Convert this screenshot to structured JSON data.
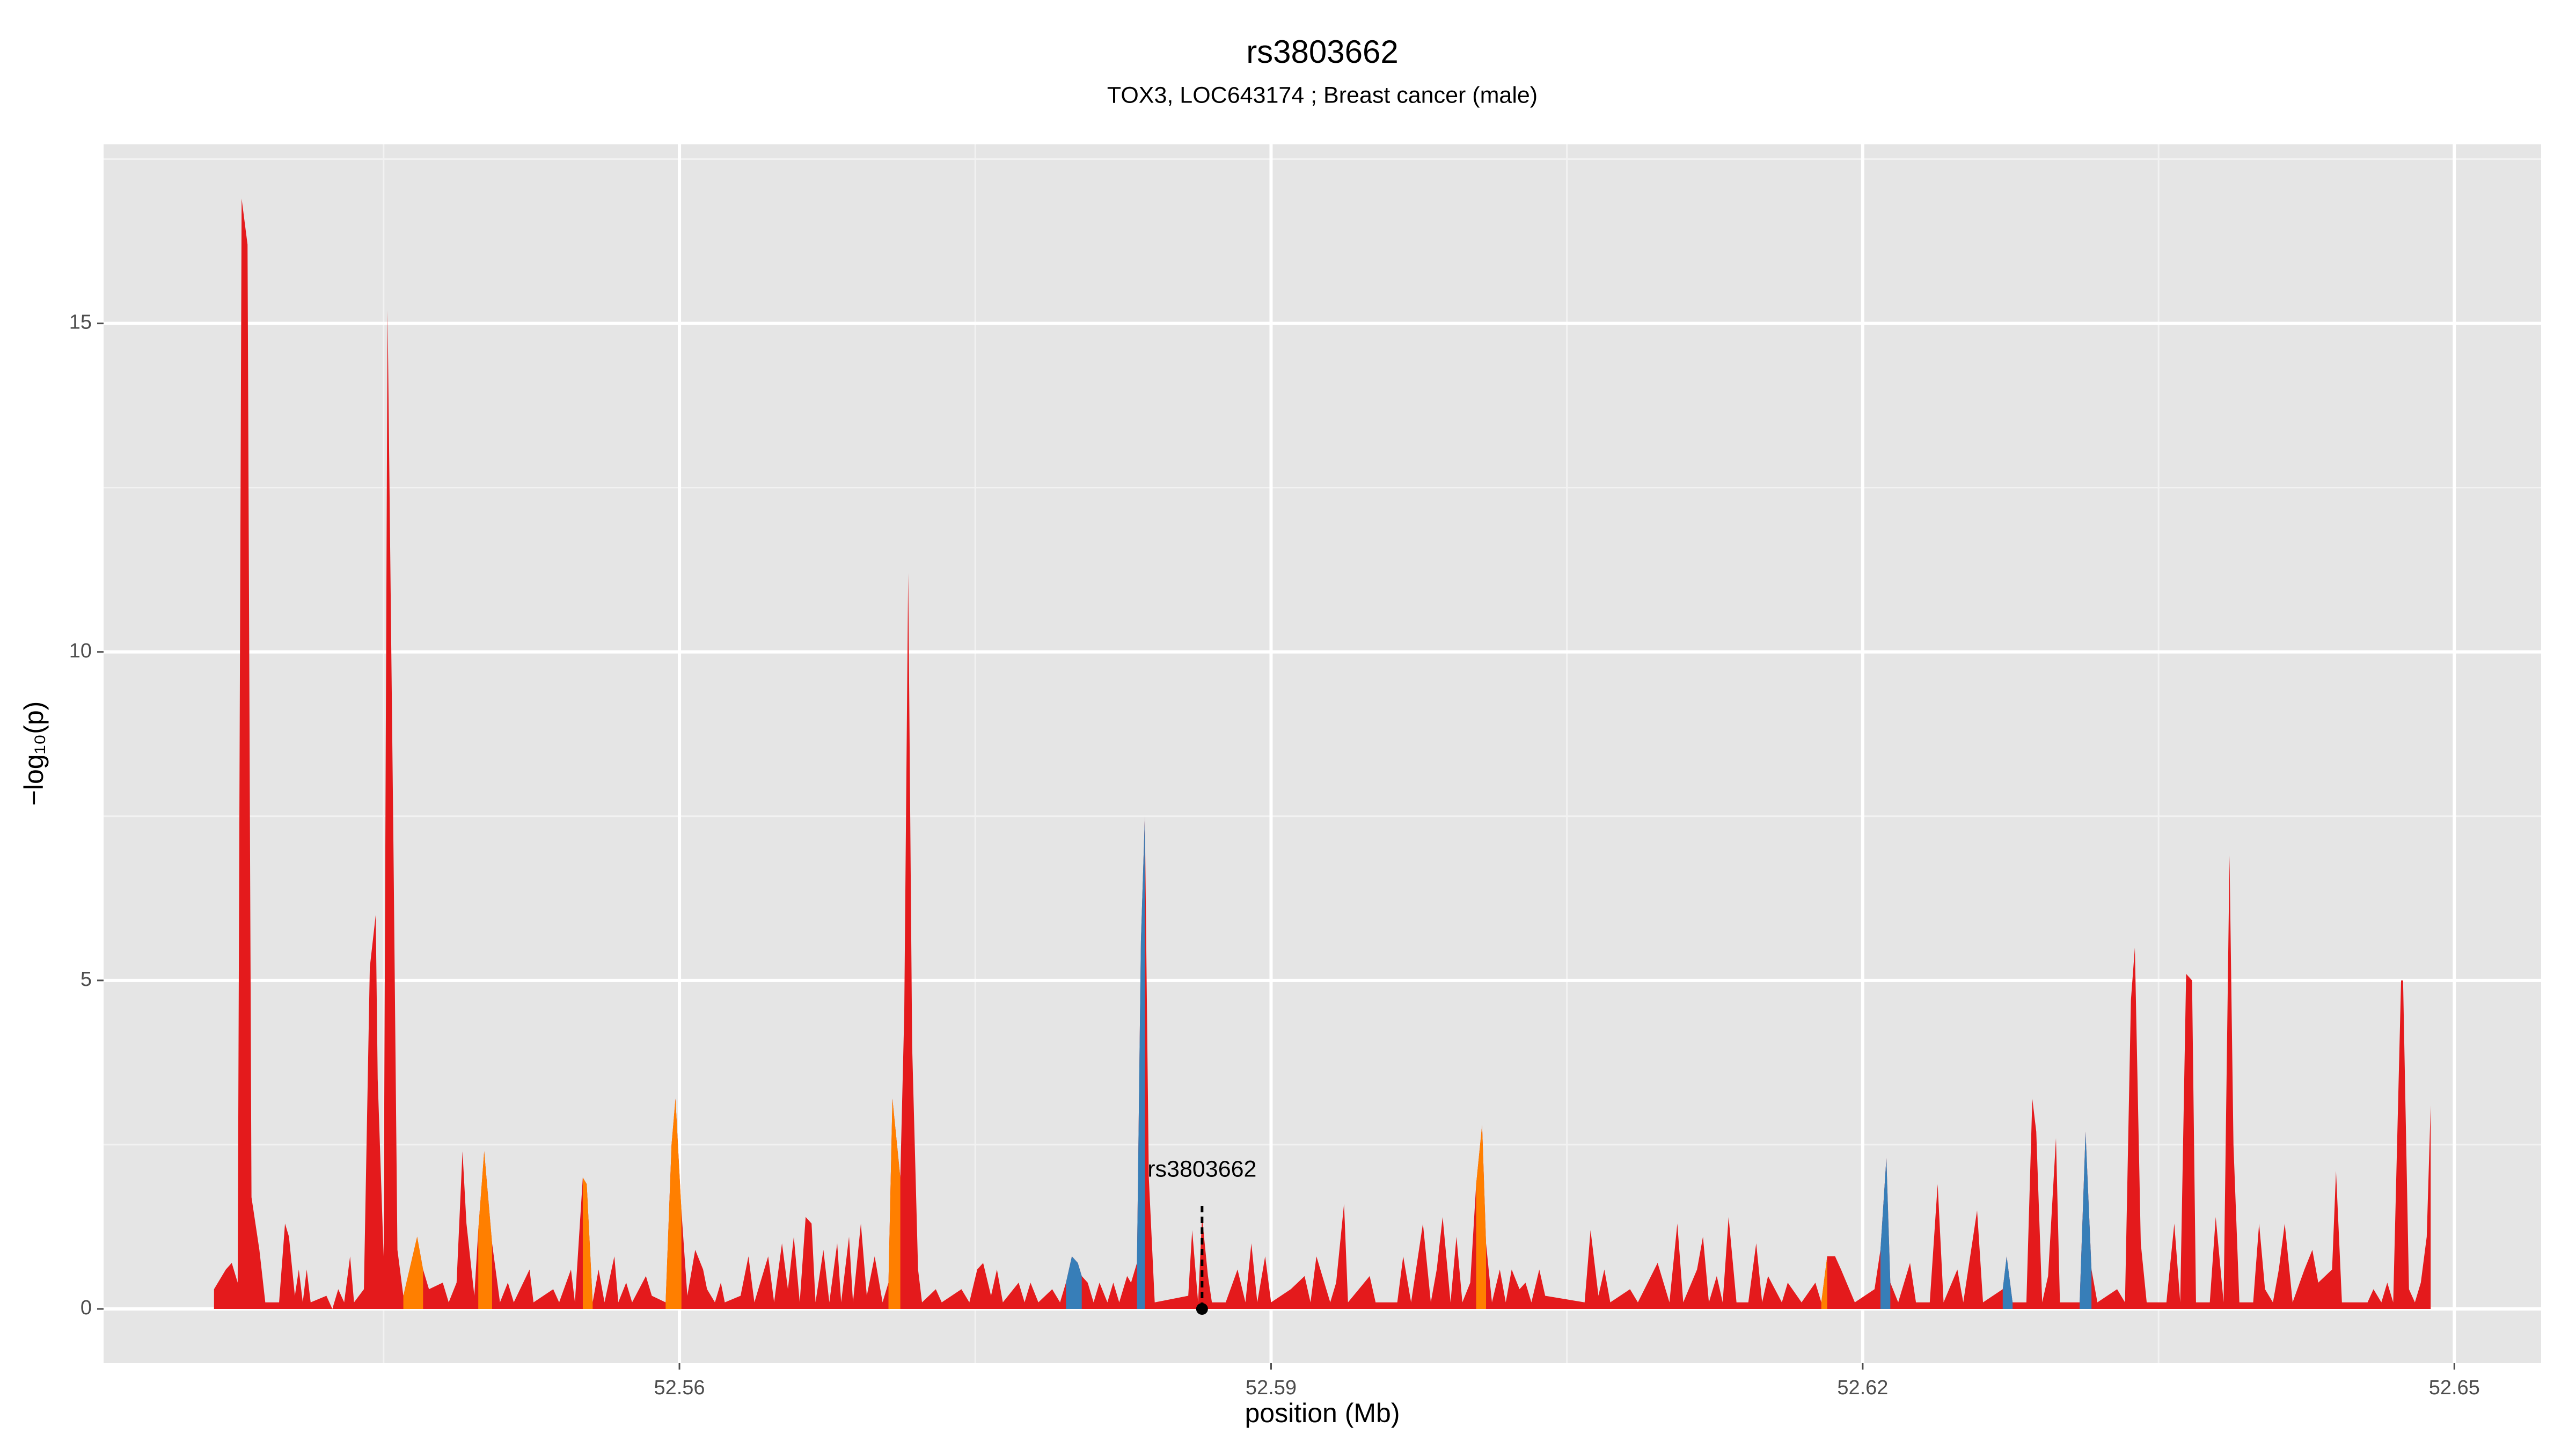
{
  "chart_data": {
    "type": "area",
    "title": "rs3803662",
    "subtitle": "TOX3, LOC643174 ; Breast cancer (male)",
    "x_label": "position (Mb)",
    "y_label": "−log₁₀(p)",
    "xlim": [
      52.5308,
      52.6544
    ],
    "ylim": [
      -0.825,
      17.725
    ],
    "xticks": [
      52.56,
      52.59,
      52.62,
      52.65
    ],
    "yticks": [
      0,
      5,
      10,
      15
    ],
    "grid": true,
    "series": [
      {
        "color": "#e41a1c",
        "x": [
          52.5364,
          52.537,
          52.5373,
          52.5376,
          52.5378,
          52.5381,
          52.5383,
          52.5387,
          52.539,
          52.5397,
          52.54,
          52.5402,
          52.5405,
          52.5407,
          52.5409,
          52.5411,
          52.5413,
          52.5421,
          52.5424,
          52.5427,
          52.543,
          52.5433,
          52.5435,
          52.544,
          52.5443,
          52.5446,
          52.5447,
          52.545,
          52.5452,
          52.5455,
          52.5457,
          52.546,
          52.5467,
          52.547,
          52.5473,
          52.548,
          52.5483,
          52.5487,
          52.549,
          52.5492,
          52.5496,
          52.5498,
          52.5501,
          52.5505,
          52.5509,
          52.5513,
          52.5516,
          52.5524,
          52.5526,
          52.5536,
          52.5539,
          52.5545,
          52.5547,
          52.5551,
          52.5553,
          52.5556,
          52.5559,
          52.5562,
          52.5567,
          52.5569,
          52.5573,
          52.5576,
          52.5583,
          52.5586,
          52.5593,
          52.5596,
          52.5598,
          52.5601,
          52.5604,
          52.5608,
          52.5612,
          52.5614,
          52.5618,
          52.5621,
          52.5623,
          52.5631,
          52.5635,
          52.5638,
          52.5645,
          52.5648,
          52.5652,
          52.5655,
          52.5658,
          52.5661,
          52.5664,
          52.5667,
          52.5669,
          52.5673,
          52.5676,
          52.568,
          52.5682,
          52.5686,
          52.5688,
          52.5692,
          52.5695,
          52.5699,
          52.5703,
          52.5706,
          52.5708,
          52.5712,
          52.5714,
          52.5716,
          52.5718,
          52.5721,
          52.5723,
          52.573,
          52.5733,
          52.5743,
          52.5747,
          52.5751,
          52.5754,
          52.5758,
          52.5761,
          52.5764,
          52.5772,
          52.5775,
          52.5778,
          52.5782,
          52.5789,
          52.5793,
          52.5796,
          52.5799,
          52.5802,
          52.5804,
          52.5807,
          52.581,
          52.5813,
          52.5817,
          52.582,
          52.5823,
          52.5827,
          52.5829,
          52.5832,
          52.5834,
          52.5836,
          52.5838,
          52.5841,
          52.5858,
          52.586,
          52.5863,
          52.5865,
          52.5868,
          52.587,
          52.5877,
          52.5883,
          52.5887,
          52.589,
          52.5893,
          52.5897,
          52.59,
          52.591,
          52.5917,
          52.592,
          52.5923,
          52.5927,
          52.593,
          52.5933,
          52.5937,
          52.5939,
          52.595,
          52.5953,
          52.5964,
          52.5967,
          52.5971,
          52.5977,
          52.5981,
          52.5984,
          52.5987,
          52.5991,
          52.5994,
          52.5997,
          52.6001,
          52.6004,
          52.6007,
          52.6009,
          52.6012,
          52.6016,
          52.6019,
          52.6022,
          52.6026,
          52.6029,
          52.6032,
          52.6036,
          52.6039,
          52.6059,
          52.6062,
          52.6066,
          52.6069,
          52.6072,
          52.6082,
          52.6086,
          52.6096,
          52.6099,
          52.6102,
          52.6106,
          52.6109,
          52.6116,
          52.6119,
          52.6122,
          52.6126,
          52.6129,
          52.6132,
          52.6136,
          52.6142,
          52.6146,
          52.6149,
          52.6152,
          52.6159,
          52.6162,
          52.6169,
          52.6176,
          52.6179,
          52.6182,
          52.6186,
          52.6189,
          52.6196,
          52.6206,
          52.6209,
          52.6212,
          52.6214,
          52.6218,
          52.6224,
          52.6227,
          52.6234,
          52.6238,
          52.6241,
          52.6248,
          52.6251,
          52.6258,
          52.6261,
          52.6271,
          52.6273,
          52.6276,
          52.6283,
          52.6286,
          52.6288,
          52.6291,
          52.6294,
          52.6298,
          52.63,
          52.631,
          52.6313,
          52.6316,
          52.6319,
          52.6329,
          52.6333,
          52.6336,
          52.6338,
          52.6341,
          52.6344,
          52.6354,
          52.6358,
          52.6361,
          52.6364,
          52.6367,
          52.6369,
          52.6376,
          52.6379,
          52.6383,
          52.6386,
          52.6388,
          52.6391,
          52.6398,
          52.6401,
          52.6404,
          52.6408,
          52.6411,
          52.6414,
          52.6418,
          52.6424,
          52.6428,
          52.6431,
          52.6438,
          52.644,
          52.6443,
          52.6456,
          52.6459,
          52.6463,
          52.6466,
          52.6469,
          52.6473,
          52.6474,
          52.6477,
          52.648,
          52.6483,
          52.6486,
          52.6488
        ],
        "values": [
          0.3,
          0.6,
          0.7,
          0.4,
          16.9,
          16.2,
          1.7,
          0.9,
          0.1,
          0.1,
          1.3,
          1.1,
          0.2,
          0.6,
          0.1,
          0.6,
          0.1,
          0.2,
          0.0,
          0.3,
          0.1,
          0.8,
          0.1,
          0.3,
          5.2,
          6.0,
          3.5,
          0.8,
          15.2,
          7.0,
          0.9,
          0.2,
          1.1,
          0.6,
          0.3,
          0.4,
          0.1,
          0.4,
          2.4,
          1.3,
          0.2,
          1.2,
          2.4,
          1.0,
          0.1,
          0.4,
          0.1,
          0.6,
          0.1,
          0.3,
          0.1,
          0.6,
          0.1,
          2.0,
          1.9,
          0.1,
          0.6,
          0.1,
          0.8,
          0.1,
          0.4,
          0.1,
          0.5,
          0.2,
          0.1,
          2.5,
          3.2,
          1.5,
          0.2,
          0.9,
          0.6,
          0.3,
          0.1,
          0.4,
          0.1,
          0.2,
          0.8,
          0.1,
          0.8,
          0.1,
          1.0,
          0.3,
          1.1,
          0.1,
          1.4,
          1.3,
          0.1,
          0.9,
          0.1,
          1.0,
          0.1,
          1.1,
          0.1,
          1.3,
          0.2,
          0.8,
          0.1,
          0.4,
          3.2,
          2.0,
          4.5,
          11.2,
          4.0,
          0.6,
          0.1,
          0.3,
          0.1,
          0.3,
          0.1,
          0.6,
          0.7,
          0.2,
          0.6,
          0.1,
          0.4,
          0.1,
          0.4,
          0.1,
          0.3,
          0.1,
          0.4,
          0.8,
          0.7,
          0.5,
          0.4,
          0.1,
          0.4,
          0.1,
          0.4,
          0.1,
          0.5,
          0.4,
          0.7,
          5.6,
          7.5,
          2.0,
          0.1,
          0.2,
          1.2,
          0.1,
          1.4,
          0.5,
          0.1,
          0.1,
          0.6,
          0.1,
          1.0,
          0.1,
          0.8,
          0.1,
          0.3,
          0.5,
          0.1,
          0.8,
          0.4,
          0.1,
          0.4,
          1.6,
          0.1,
          0.5,
          0.1,
          0.1,
          0.8,
          0.1,
          1.3,
          0.1,
          0.6,
          1.4,
          0.1,
          1.1,
          0.1,
          0.4,
          1.9,
          2.8,
          1.0,
          0.1,
          0.6,
          0.1,
          0.6,
          0.3,
          0.4,
          0.1,
          0.6,
          0.2,
          0.1,
          1.2,
          0.2,
          0.6,
          0.1,
          0.3,
          0.1,
          0.7,
          0.4,
          0.1,
          1.3,
          0.1,
          0.6,
          1.1,
          0.1,
          0.5,
          0.1,
          1.4,
          0.1,
          0.1,
          1.0,
          0.1,
          0.5,
          0.1,
          0.4,
          0.1,
          0.4,
          0.1,
          0.8,
          0.8,
          0.6,
          0.1,
          0.3,
          0.9,
          2.3,
          0.4,
          0.1,
          0.7,
          0.1,
          0.1,
          1.9,
          0.1,
          0.6,
          0.1,
          1.5,
          0.1,
          0.3,
          0.8,
          0.1,
          0.1,
          3.2,
          2.7,
          0.1,
          0.5,
          2.6,
          0.1,
          0.1,
          2.7,
          0.6,
          0.1,
          0.3,
          0.1,
          4.7,
          5.5,
          1.0,
          0.1,
          0.1,
          1.3,
          0.1,
          5.1,
          5.0,
          0.1,
          0.1,
          1.4,
          0.1,
          6.9,
          2.5,
          0.1,
          0.1,
          1.3,
          0.3,
          0.1,
          0.6,
          1.3,
          0.1,
          0.6,
          0.9,
          0.4,
          0.6,
          2.1,
          0.1,
          0.1,
          0.3,
          0.1,
          0.4,
          0.1,
          5.0,
          5.0,
          0.3,
          0.1,
          0.4,
          1.1,
          3.1
        ]
      },
      {
        "color": "#ff7f00",
        "x": [
          52.546,
          52.5467,
          52.547,
          null,
          52.5498,
          52.5501,
          52.5505,
          null,
          52.5551,
          52.5553,
          52.5556,
          null,
          52.5593,
          52.5596,
          52.5598,
          52.5601,
          null,
          52.5706,
          52.5708,
          52.5712,
          null,
          52.6004,
          52.6007,
          52.6009,
          null,
          52.6179,
          52.6182
        ],
        "values": [
          0.2,
          1.1,
          0.6,
          null,
          1.2,
          2.4,
          1.0,
          null,
          2.0,
          1.9,
          0.1,
          null,
          0.1,
          2.5,
          3.2,
          1.5,
          null,
          0.4,
          3.2,
          2.0,
          null,
          1.9,
          2.8,
          1.0,
          null,
          0.1,
          0.8
        ]
      },
      {
        "color": "#377eb8",
        "x": [
          52.5796,
          52.5799,
          52.5802,
          52.5804,
          null,
          52.5832,
          52.5834,
          52.5836,
          null,
          52.6209,
          52.6212,
          52.6214,
          null,
          52.6271,
          52.6273,
          52.6276,
          null,
          52.631,
          52.6313,
          52.6316
        ],
        "values": [
          0.4,
          0.8,
          0.7,
          0.5,
          null,
          0.7,
          5.6,
          7.5,
          null,
          0.9,
          2.3,
          0.4,
          null,
          0.3,
          0.8,
          0.1,
          null,
          0.1,
          2.7,
          0.6
        ]
      }
    ],
    "annotation": {
      "text": "rs3803662",
      "x": 52.5865,
      "y": 0
    }
  }
}
